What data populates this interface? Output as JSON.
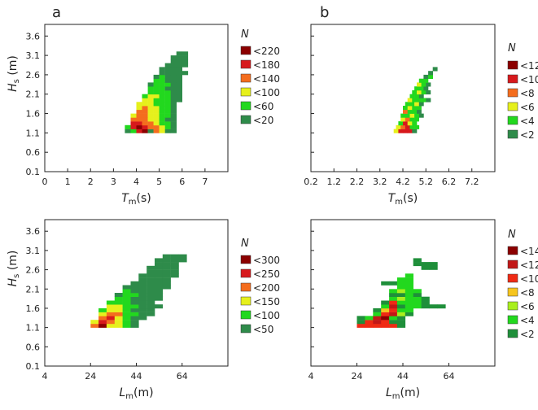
{
  "figure": {
    "panel_letters": [
      "a",
      "b"
    ],
    "axis_unit_s": "(s)",
    "axis_unit_m": "(m)"
  },
  "chart_data": [
    {
      "type": "heatmap",
      "id": "a-top",
      "panel": "a",
      "xlabel": {
        "symbol": "T",
        "sub": "m",
        "unit": "(s)"
      },
      "ylabel": {
        "symbol": "H",
        "sub": "s",
        "unit": "(m)"
      },
      "xlim": [
        0,
        8
      ],
      "ylim": [
        0.1,
        3.9
      ],
      "xticks": [
        "0",
        "1",
        "2",
        "3",
        "4",
        "5",
        "6",
        "7"
      ],
      "yticks": [
        "0.1",
        "0.6",
        "1.1",
        "1.6",
        "2.1",
        "2.6",
        "3.1",
        "3.6"
      ],
      "cell": [
        0.25,
        0.1
      ],
      "legend": {
        "title": "N",
        "entries": [
          {
            "label": "<220",
            "color": "#8b0000"
          },
          {
            "label": "<180",
            "color": "#d7191c"
          },
          {
            "label": "<140",
            "color": "#f46d1e"
          },
          {
            "label": "<100",
            "color": "#e6f01c"
          },
          {
            "label": "<60",
            "color": "#22d81e"
          },
          {
            "label": "<20",
            "color": "#2e8b4a"
          }
        ]
      },
      "rows": [
        {
          "y": 1.1,
          "x0": 3.5,
          "levels": [
            6,
            5,
            2,
            1,
            0,
            3,
            4,
            6,
            6
          ]
        },
        {
          "y": 1.2,
          "x0": 3.5,
          "levels": [
            5,
            2,
            1,
            2,
            3,
            3,
            4,
            5,
            6
          ]
        },
        {
          "y": 1.3,
          "x0": 3.75,
          "levels": [
            2,
            2,
            3,
            3,
            4,
            5,
            5,
            6
          ]
        },
        {
          "y": 1.4,
          "x0": 3.75,
          "levels": [
            3,
            3,
            3,
            4,
            4,
            5,
            6,
            6
          ]
        },
        {
          "y": 1.5,
          "x0": 3.75,
          "levels": [
            4,
            3,
            3,
            4,
            4,
            5,
            5,
            6
          ]
        },
        {
          "y": 1.6,
          "x0": 4.0,
          "levels": [
            3,
            3,
            4,
            4,
            5,
            5,
            6
          ]
        },
        {
          "y": 1.7,
          "x0": 4.0,
          "levels": [
            4,
            3,
            4,
            4,
            5,
            5,
            6
          ]
        },
        {
          "y": 1.8,
          "x0": 4.0,
          "levels": [
            4,
            4,
            4,
            5,
            5,
            5,
            6
          ]
        },
        {
          "y": 1.9,
          "x0": 4.25,
          "levels": [
            4,
            4,
            5,
            5,
            5,
            6,
            6
          ]
        },
        {
          "y": 2.0,
          "x0": 4.25,
          "levels": [
            5,
            4,
            4,
            5,
            5,
            6,
            6
          ]
        },
        {
          "y": 2.1,
          "x0": 4.5,
          "levels": [
            5,
            5,
            5,
            5,
            6,
            6
          ]
        },
        {
          "y": 2.2,
          "x0": 4.5,
          "levels": [
            5,
            5,
            5,
            6,
            6,
            6
          ]
        },
        {
          "y": 2.3,
          "x0": 4.5,
          "levels": [
            6,
            5,
            5,
            5,
            6,
            6
          ]
        },
        {
          "y": 2.4,
          "x0": 4.75,
          "levels": [
            5,
            5,
            6,
            6,
            6
          ]
        },
        {
          "y": 2.5,
          "x0": 4.75,
          "levels": [
            6,
            5,
            6,
            6,
            6
          ]
        },
        {
          "y": 2.6,
          "x0": 5.0,
          "levels": [
            6,
            6,
            6,
            6,
            6
          ]
        },
        {
          "y": 2.7,
          "x0": 5.0,
          "levels": [
            6,
            6,
            6,
            6
          ]
        },
        {
          "y": 2.8,
          "x0": 5.25,
          "levels": [
            6,
            6,
            6,
            6
          ]
        },
        {
          "y": 2.9,
          "x0": 5.5,
          "levels": [
            6,
            6,
            6
          ]
        },
        {
          "y": 3.0,
          "x0": 5.5,
          "levels": [
            6,
            6,
            6
          ]
        },
        {
          "y": 3.1,
          "x0": 5.75,
          "levels": [
            6,
            6
          ]
        }
      ]
    },
    {
      "type": "heatmap",
      "id": "b-top",
      "panel": "b",
      "xlabel": {
        "symbol": "T",
        "sub": "m",
        "unit": "(s)"
      },
      "ylabel": {
        "symbol": "",
        "sub": "",
        "unit": ""
      },
      "xlim": [
        0.2,
        8.2
      ],
      "ylim": [
        0.1,
        3.9
      ],
      "xticks": [
        "0.2",
        "1.2",
        "2.2",
        "3.2",
        "4.2",
        "5.2",
        "6.2",
        "7.2"
      ],
      "yticks": [],
      "cell": [
        0.2,
        0.1
      ],
      "legend": {
        "title": "N",
        "entries": [
          {
            "label": "<12",
            "color": "#8b0000"
          },
          {
            "label": "<10",
            "color": "#d7191c"
          },
          {
            "label": "<8",
            "color": "#f46d1e"
          },
          {
            "label": "<6",
            "color": "#e6f01c"
          },
          {
            "label": "<4",
            "color": "#22d81e"
          },
          {
            "label": "<2",
            "color": "#2e8b4a"
          }
        ]
      },
      "rows": [
        {
          "y": 1.1,
          "x0": 3.8,
          "levels": [
            4,
            2,
            2,
            2,
            6
          ]
        },
        {
          "y": 1.2,
          "x0": 3.9,
          "levels": [
            4,
            3,
            2,
            5,
            5
          ]
        },
        {
          "y": 1.3,
          "x0": 4.0,
          "levels": [
            5,
            2,
            4,
            5
          ]
        },
        {
          "y": 1.4,
          "x0": 4.1,
          "levels": [
            4,
            3,
            5,
            5
          ]
        },
        {
          "y": 1.5,
          "x0": 4.1,
          "levels": [
            5,
            5,
            4,
            5,
            6
          ]
        },
        {
          "y": 1.6,
          "x0": 4.2,
          "levels": [
            3,
            5,
            5,
            6
          ]
        },
        {
          "y": 1.7,
          "x0": 4.2,
          "levels": [
            5,
            4,
            5,
            5
          ]
        },
        {
          "y": 1.8,
          "x0": 4.3,
          "levels": [
            5,
            5,
            4,
            6
          ]
        },
        {
          "y": 1.9,
          "x0": 4.4,
          "levels": [
            4,
            5,
            5,
            5,
            6
          ]
        },
        {
          "y": 2.0,
          "x0": 4.5,
          "levels": [
            5,
            5,
            6
          ]
        },
        {
          "y": 2.1,
          "x0": 4.6,
          "levels": [
            5,
            4,
            5,
            6
          ]
        },
        {
          "y": 2.2,
          "x0": 4.7,
          "levels": [
            5,
            5,
            6
          ]
        },
        {
          "y": 2.3,
          "x0": 4.8,
          "levels": [
            4,
            5,
            6
          ]
        },
        {
          "y": 2.4,
          "x0": 4.9,
          "levels": [
            5,
            5
          ]
        },
        {
          "y": 2.5,
          "x0": 5.1,
          "levels": [
            6,
            5
          ]
        },
        {
          "y": 2.6,
          "x0": 5.3,
          "levels": [
            6
          ]
        },
        {
          "y": 2.7,
          "x0": 5.5,
          "levels": [
            6
          ]
        }
      ]
    },
    {
      "type": "heatmap",
      "id": "a-bottom",
      "panel": "a",
      "xlabel": {
        "symbol": "L",
        "sub": "m",
        "unit": "(m)"
      },
      "ylabel": {
        "symbol": "H",
        "sub": "s",
        "unit": "(m)"
      },
      "xlim": [
        4,
        84
      ],
      "ylim": [
        0.1,
        3.9
      ],
      "xticks": [
        "4",
        "24",
        "44",
        "64"
      ],
      "yticks": [
        "0.1",
        "0.6",
        "1.1",
        "1.6",
        "2.1",
        "2.6",
        "3.1",
        "3.6"
      ],
      "cell": [
        3.5,
        0.1
      ],
      "legend": {
        "title": "N",
        "entries": [
          {
            "label": "<300",
            "color": "#8b0000"
          },
          {
            "label": "<250",
            "color": "#d7191c"
          },
          {
            "label": "<200",
            "color": "#f46d1e"
          },
          {
            "label": "<150",
            "color": "#e6f01c"
          },
          {
            "label": "<100",
            "color": "#22d81e"
          },
          {
            "label": "<50",
            "color": "#2e8b4a"
          }
        ]
      },
      "rows": [
        {
          "y": 1.1,
          "x0": 24,
          "levels": [
            3,
            1,
            4,
            4,
            5,
            6
          ]
        },
        {
          "y": 1.2,
          "x0": 24,
          "levels": [
            4,
            2,
            3,
            4,
            5,
            6
          ]
        },
        {
          "y": 1.3,
          "x0": 27.5,
          "levels": [
            3,
            2,
            4,
            5,
            6,
            6
          ]
        },
        {
          "y": 1.4,
          "x0": 27.5,
          "levels": [
            4,
            3,
            3,
            5,
            5,
            6,
            6
          ]
        },
        {
          "y": 1.5,
          "x0": 27.5,
          "levels": [
            5,
            4,
            4,
            5,
            6,
            6,
            6
          ]
        },
        {
          "y": 1.6,
          "x0": 31,
          "levels": [
            4,
            4,
            5,
            5,
            6,
            6,
            6
          ]
        },
        {
          "y": 1.7,
          "x0": 31,
          "levels": [
            5,
            5,
            5,
            6,
            6,
            6
          ]
        },
        {
          "y": 1.8,
          "x0": 34.5,
          "levels": [
            5,
            5,
            6,
            6,
            6,
            6
          ]
        },
        {
          "y": 1.9,
          "x0": 34.5,
          "levels": [
            6,
            5,
            5,
            6,
            6,
            6
          ]
        },
        {
          "y": 2.0,
          "x0": 38,
          "levels": [
            5,
            6,
            6,
            6,
            6
          ]
        },
        {
          "y": 2.1,
          "x0": 38,
          "levels": [
            6,
            6,
            6,
            6,
            6,
            6
          ]
        },
        {
          "y": 2.2,
          "x0": 41.5,
          "levels": [
            6,
            6,
            6,
            6,
            6
          ]
        },
        {
          "y": 2.3,
          "x0": 45,
          "levels": [
            6,
            6,
            6,
            6
          ]
        },
        {
          "y": 2.4,
          "x0": 45,
          "levels": [
            6,
            6,
            6,
            6,
            6
          ]
        },
        {
          "y": 2.5,
          "x0": 48.5,
          "levels": [
            6,
            6,
            6,
            6
          ]
        },
        {
          "y": 2.6,
          "x0": 48.5,
          "levels": [
            6,
            6,
            6,
            6
          ]
        },
        {
          "y": 2.7,
          "x0": 52,
          "levels": [
            6,
            6,
            6
          ]
        },
        {
          "y": 2.8,
          "x0": 52,
          "levels": [
            6,
            6,
            6,
            6
          ]
        },
        {
          "y": 2.9,
          "x0": 55.5,
          "levels": [
            6,
            6,
            6
          ]
        }
      ]
    },
    {
      "type": "heatmap",
      "id": "b-bottom",
      "panel": "b",
      "xlabel": {
        "symbol": "L",
        "sub": "m",
        "unit": "(m)"
      },
      "ylabel": {
        "symbol": "",
        "sub": "",
        "unit": ""
      },
      "xlim": [
        4,
        84
      ],
      "ylim": [
        0.1,
        3.9
      ],
      "xticks": [
        "4",
        "24",
        "44",
        "64"
      ],
      "yticks": [],
      "cell": [
        3.5,
        0.1
      ],
      "legend": {
        "title": "N",
        "entries": [
          {
            "label": "<14",
            "color": "#8b0000"
          },
          {
            "label": "<12",
            "color": "#c21717"
          },
          {
            "label": "<10",
            "color": "#ef2a14"
          },
          {
            "label": "<8",
            "color": "#f6c51e"
          },
          {
            "label": "<6",
            "color": "#a8ef1e"
          },
          {
            "label": "<4",
            "color": "#22d81e"
          },
          {
            "label": "<2",
            "color": "#1f8f3a"
          }
        ]
      },
      "rows": [
        {
          "y": 1.1,
          "x0": 24,
          "levels": [
            3,
            3,
            3,
            3,
            3,
            7
          ]
        },
        {
          "y": 1.2,
          "x0": 24,
          "levels": [
            7,
            3,
            2,
            3,
            7,
            7
          ]
        },
        {
          "y": 1.3,
          "x0": 24,
          "levels": [
            7,
            6,
            2,
            1,
            6,
            7
          ]
        },
        {
          "y": 1.4,
          "x0": 31,
          "levels": [
            6,
            3,
            2,
            5,
            7
          ]
        },
        {
          "y": 1.5,
          "x0": 31,
          "levels": [
            7,
            4,
            3,
            6,
            6
          ]
        },
        {
          "y": 1.6,
          "x0": 34.5,
          "levels": [
            6,
            2,
            7,
            6,
            6,
            7,
            7,
            7
          ]
        },
        {
          "y": 1.7,
          "x0": 34.5,
          "levels": [
            7,
            3,
            6,
            6,
            6,
            7
          ]
        },
        {
          "y": 1.8,
          "x0": 38,
          "levels": [
            6,
            5,
            6,
            6,
            7
          ]
        },
        {
          "y": 1.9,
          "x0": 38,
          "levels": [
            7,
            7,
            6,
            7
          ]
        },
        {
          "y": 2.0,
          "x0": 38,
          "levels": [
            6,
            5,
            6,
            6
          ]
        },
        {
          "y": 2.1,
          "x0": 41.5,
          "levels": [
            6,
            6
          ]
        },
        {
          "y": 2.2,
          "x0": 34.5,
          "levels": [
            7,
            7,
            6,
            6
          ]
        },
        {
          "y": 2.3,
          "x0": 41.5,
          "levels": [
            6,
            6
          ]
        },
        {
          "y": 2.4,
          "x0": 45,
          "levels": [
            6
          ]
        },
        {
          "y": 2.6,
          "x0": 52,
          "levels": [
            7,
            7
          ]
        },
        {
          "y": 2.7,
          "x0": 48.5,
          "levels": [
            7,
            7,
            7
          ]
        },
        {
          "y": 2.8,
          "x0": 48.5,
          "levels": [
            7
          ]
        }
      ]
    }
  ]
}
